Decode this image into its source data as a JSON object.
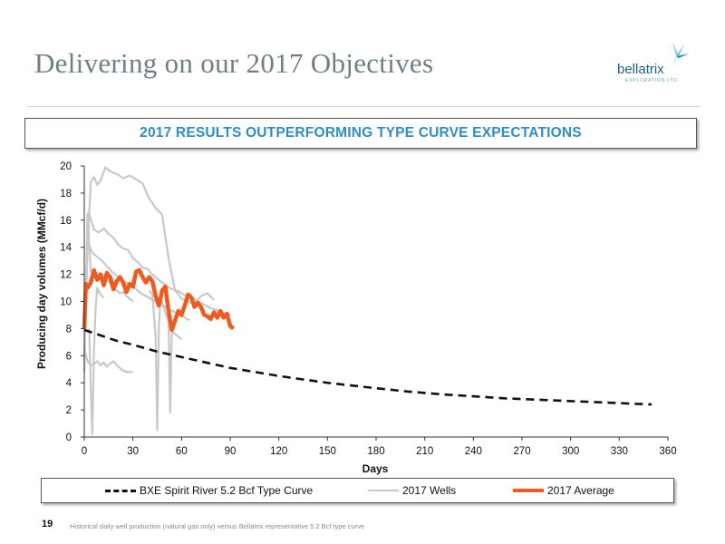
{
  "slide": {
    "title": "Delivering on our 2017 Objectives",
    "banner": "2017 RESULTS OUTPERFORMING TYPE CURVE EXPECTATIONS",
    "page_number": "19",
    "footnote": "Historical daily well production (natural gas only) versus Bellatrix representative 5.2 Bcf type curve"
  },
  "logo": {
    "name": "bellatrix",
    "subtitle": "EXPLORATION LTD.",
    "icon": "star-burst-icon"
  },
  "colors": {
    "title": "#6f7f86",
    "banner_text": "#2d8ec7",
    "type_curve": "#111111",
    "wells": "#c8c8c8",
    "average": "#f05a1e"
  },
  "chart_data": {
    "type": "line",
    "xlabel": "Days",
    "ylabel": "Producing day volumes (MMcf/d)",
    "xlim": [
      0,
      360
    ],
    "ylim": [
      0,
      20
    ],
    "xticks": [
      0,
      30,
      60,
      90,
      120,
      150,
      180,
      210,
      240,
      270,
      300,
      330,
      360
    ],
    "yticks": [
      0,
      2,
      4,
      6,
      8,
      10,
      12,
      14,
      16,
      18,
      20
    ],
    "grid": false,
    "legend_position": "bottom",
    "series": [
      {
        "name": "BXE Spirit River 5.2 Bcf Type Curve",
        "style": "dashed",
        "x": [
          0,
          10,
          20,
          30,
          45,
          60,
          75,
          90,
          105,
          120,
          135,
          150,
          165,
          180,
          200,
          220,
          240,
          260,
          280,
          300,
          320,
          340,
          350
        ],
        "y": [
          7.9,
          7.5,
          7.1,
          6.8,
          6.3,
          5.9,
          5.5,
          5.1,
          4.8,
          4.5,
          4.25,
          4.0,
          3.8,
          3.6,
          3.35,
          3.15,
          3.0,
          2.85,
          2.75,
          2.65,
          2.55,
          2.45,
          2.4
        ]
      },
      {
        "name": "2017 Wells",
        "style": "solid",
        "wells": [
          {
            "x": [
              0,
              2,
              4,
              6,
              8,
              10,
              13,
              16,
              20,
              24,
              28,
              32,
              36,
              40,
              44,
              48,
              52,
              56,
              60,
              64,
              68,
              72,
              76,
              80
            ],
            "y": [
              6,
              14,
              18.8,
              19.2,
              18.6,
              18.9,
              19.9,
              19.6,
              19.4,
              19.1,
              19.3,
              19.0,
              18.7,
              17.6,
              16.9,
              16.4,
              13.2,
              10.8,
              10.2,
              10.0,
              9.8,
              10.4,
              10.6,
              10.1
            ]
          },
          {
            "x": [
              0,
              3,
              6,
              9,
              12,
              15,
              18,
              21,
              24,
              27,
              30,
              33,
              36,
              39,
              42,
              45,
              48,
              51,
              54,
              57,
              60,
              63,
              66,
              69,
              72,
              75,
              78,
              81,
              84,
              87,
              90
            ],
            "y": [
              8,
              16.5,
              15.3,
              15.1,
              15.4,
              15.0,
              14.7,
              14.2,
              13.9,
              13.8,
              13.2,
              12.9,
              12.5,
              12.4,
              12.0,
              11.7,
              11.4,
              11.1,
              10.9,
              10.8,
              10.6,
              10.4,
              10.3,
              10.1,
              9.9,
              9.7,
              9.5,
              9.4,
              9.2,
              9.1,
              9.0
            ]
          },
          {
            "x": [
              0,
              2,
              5,
              8,
              11,
              14,
              17,
              20,
              23,
              26,
              29,
              32,
              35,
              38,
              41,
              44,
              47,
              50,
              53,
              56,
              59,
              62,
              65
            ],
            "y": [
              9,
              14.5,
              13.6,
              13.3,
              13.0,
              12.6,
              12.2,
              11.9,
              11.6,
              11.4,
              11.1,
              10.9,
              10.6,
              10.4,
              10.2,
              10.0,
              9.8,
              9.6,
              9.4,
              9.2,
              9.0,
              8.8,
              8.6
            ]
          },
          {
            "x": [
              0,
              2,
              4,
              6,
              8,
              10,
              12,
              14,
              16,
              18,
              20,
              22,
              24,
              26,
              28,
              30
            ],
            "y": [
              4.8,
              16.5,
              12.2,
              12.0,
              11.8,
              11.6,
              12.0,
              11.6,
              11.3,
              11.0,
              10.8,
              10.6,
              10.7,
              10.4,
              10.2,
              10.0
            ]
          },
          {
            "x": [
              0,
              2,
              4,
              6,
              8,
              10,
              12,
              14,
              16,
              18,
              20,
              22,
              24,
              26,
              28,
              30
            ],
            "y": [
              6.5,
              5.6,
              5.3,
              5.4,
              5.6,
              5.3,
              5.5,
              5.2,
              5.4,
              5.6,
              5.3,
              5.1,
              4.9,
              4.8,
              4.8,
              4.8
            ]
          },
          {
            "x": [
              3,
              4,
              5,
              6,
              7,
              8,
              10,
              12
            ],
            "y": [
              8,
              3.5,
              0.2,
              6.5,
              9.5,
              11,
              10.5,
              10.3
            ]
          },
          {
            "x": [
              40,
              42,
              44,
              45,
              46,
              47,
              48,
              50,
              52,
              53,
              54,
              56,
              58,
              60
            ],
            "y": [
              10.8,
              10.5,
              7.5,
              0.5,
              8.0,
              10.2,
              10.0,
              9.2,
              8.5,
              1.8,
              7.8,
              7.6,
              7.4,
              7.2
            ]
          }
        ]
      },
      {
        "name": "2017 Average",
        "style": "thick",
        "x": [
          0,
          1,
          2,
          4,
          6,
          8,
          10,
          12,
          14,
          16,
          18,
          20,
          22,
          24,
          26,
          28,
          30,
          32,
          34,
          36,
          38,
          40,
          42,
          44,
          46,
          48,
          50,
          52,
          54,
          56,
          58,
          60,
          62,
          64,
          66,
          68,
          70,
          72,
          74,
          76,
          78,
          80,
          82,
          84,
          86,
          88,
          90,
          92
        ],
        "y": [
          8.0,
          11.3,
          11.0,
          11.4,
          12.3,
          11.6,
          12.0,
          11.2,
          12.1,
          11.8,
          10.9,
          11.5,
          11.8,
          11.4,
          10.7,
          11.3,
          11.1,
          12.2,
          12.3,
          11.8,
          11.4,
          11.8,
          11.5,
          10.4,
          9.7,
          10.8,
          11.1,
          9.3,
          7.9,
          8.6,
          9.3,
          9.0,
          9.7,
          10.5,
          10.3,
          9.6,
          9.9,
          9.6,
          9.0,
          8.9,
          8.7,
          9.2,
          8.8,
          9.3,
          8.8,
          9.1,
          8.2,
          8.0
        ]
      }
    ]
  }
}
